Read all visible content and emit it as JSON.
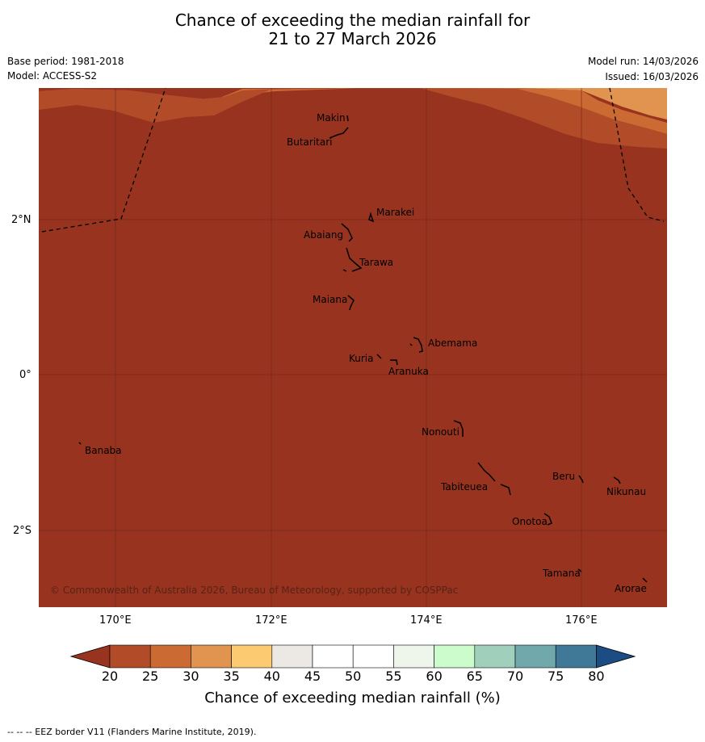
{
  "header": {
    "title_line1": "Chance of exceeding the median rainfall for",
    "title_line2": "21 to 27 March 2026",
    "base_period": "Base period: 1981-2018",
    "model": "Model: ACCESS-S2",
    "model_run": "Model run: 14/03/2026",
    "issued": "Issued: 16/03/2026"
  },
  "map": {
    "lat_labels": [
      "2°N",
      "0°",
      "2°S"
    ],
    "lon_labels": [
      "170°E",
      "172°E",
      "174°E",
      "176°E"
    ],
    "islands": [
      "Makin",
      "Butaritari",
      "Marakei",
      "Abaiang",
      "Tarawa",
      "Maiana",
      "Abemama",
      "Kuria",
      "Aranuka",
      "Nonouti",
      "Banaba",
      "Beru",
      "Nikunau",
      "Tabiteuea",
      "Onotoa",
      "Tamana",
      "Arorae"
    ],
    "copyright": "© Commonwealth of Australia 2026, Bureau of Meteorology, supported by COSPPac",
    "colors": {
      "lt20": "#983320",
      "c20_25": "#b24c28",
      "c25_30": "#cc6a34",
      "c30_35": "#e09450",
      "c35_40": "#fcca70",
      "c40_45": "#ece8e4",
      "grid": "#6b2418"
    }
  },
  "colorbar": {
    "ticks": [
      "20",
      "25",
      "30",
      "35",
      "40",
      "45",
      "50",
      "55",
      "60",
      "65",
      "70",
      "75",
      "80"
    ],
    "colors": [
      "#983320",
      "#b24c28",
      "#cc6a34",
      "#e09450",
      "#fcca70",
      "#ece8e4",
      "#ffffff",
      "#ffffff",
      "#eef6ec",
      "#ccfccc",
      "#a0d0bc",
      "#70a8ac",
      "#407898",
      "#1c4c84"
    ],
    "label": "Chance of exceeding median rainfall (%)"
  },
  "footer": {
    "eez_note": "--  --  -- EEZ border V11 (Flanders Marine Institute, 2019)."
  }
}
